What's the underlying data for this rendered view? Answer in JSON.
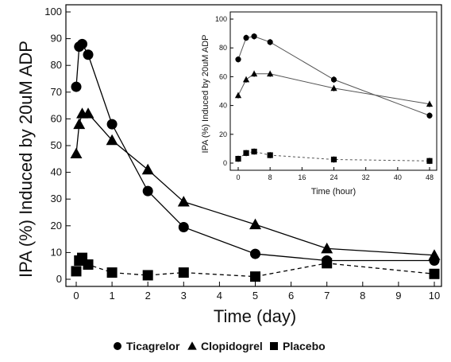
{
  "chart_data": [
    {
      "type": "line",
      "xlabel": "Time (day)",
      "ylabel": "IPA (%) Induced by 20uM ADP",
      "xlim": [
        0,
        10
      ],
      "ylim": [
        0,
        100
      ],
      "x_ticks": [
        "0",
        "1",
        "2",
        "3",
        "4",
        "5",
        "6",
        "7",
        "8",
        "9",
        "10"
      ],
      "y_ticks": [
        "0",
        "10",
        "20",
        "30",
        "40",
        "50",
        "60",
        "70",
        "80",
        "90",
        "100"
      ],
      "series": [
        {
          "name": "Ticagrelor",
          "marker": "circle",
          "line_style": "solid",
          "x": [
            0,
            0.083,
            0.167,
            0.333,
            1,
            2,
            3,
            5,
            7,
            10
          ],
          "values": [
            72,
            87,
            88,
            84,
            58,
            33,
            19.5,
            9.5,
            7,
            7
          ]
        },
        {
          "name": "Clopidogrel",
          "marker": "triangle",
          "line_style": "solid",
          "x": [
            0,
            0.083,
            0.167,
            0.333,
            1,
            2,
            3,
            5,
            7,
            10
          ],
          "values": [
            47,
            58,
            62,
            62,
            52,
            41,
            29,
            20.5,
            11.5,
            9
          ]
        },
        {
          "name": "Placebo",
          "marker": "square",
          "line_style": "dashed",
          "x": [
            0,
            0.083,
            0.167,
            0.333,
            1,
            2,
            3,
            5,
            7,
            10
          ],
          "values": [
            3,
            7,
            8,
            5.5,
            2.5,
            1.5,
            2.5,
            1,
            6,
            2
          ]
        }
      ]
    },
    {
      "type": "line",
      "xlabel": "Time (hour)",
      "ylabel": "IPA (%) Induced by 20uM ADP",
      "xlim": [
        0,
        48
      ],
      "ylim": [
        0,
        100
      ],
      "x_ticks": [
        "0",
        "8",
        "16",
        "24",
        "32",
        "40",
        "48"
      ],
      "y_ticks": [
        "0",
        "20",
        "40",
        "60",
        "80",
        "100"
      ],
      "series": [
        {
          "name": "Ticagrelor",
          "marker": "circle",
          "line_style": "solid",
          "x": [
            0,
            2,
            4,
            8,
            24,
            48
          ],
          "values": [
            72,
            87,
            88,
            84,
            58,
            33
          ]
        },
        {
          "name": "Clopidogrel",
          "marker": "triangle",
          "line_style": "solid",
          "x": [
            0,
            2,
            4,
            8,
            24,
            48
          ],
          "values": [
            47,
            58,
            62,
            62,
            52,
            41
          ]
        },
        {
          "name": "Placebo",
          "marker": "square",
          "line_style": "dashed",
          "x": [
            0,
            2,
            4,
            8,
            24,
            48
          ],
          "values": [
            3,
            7,
            8,
            5.5,
            2.5,
            1.5
          ]
        }
      ]
    }
  ],
  "legend": {
    "placement": "bottom",
    "items": [
      {
        "label": "Ticagrelor",
        "marker": "circle"
      },
      {
        "label": "Clopidogrel",
        "marker": "triangle"
      },
      {
        "label": "Placebo",
        "marker": "square"
      }
    ]
  },
  "colors": {
    "ink": "#000000",
    "inset_line": "#555555"
  }
}
